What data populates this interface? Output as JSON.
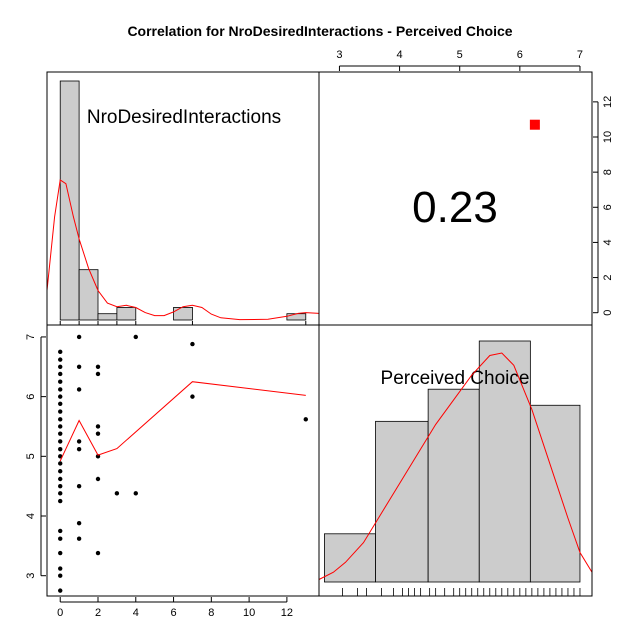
{
  "title": "Correlation  for NroDesiredInteractions - Perceived Choice",
  "chart_data": {
    "type": "scatter",
    "variables": [
      "NroDesiredInteractions",
      "Perceived Choice"
    ],
    "correlation_label": "0.23",
    "x_axis": {
      "variable": "NroDesiredInteractions",
      "range": [
        -0.7,
        13.7
      ],
      "ticks": [
        0,
        2,
        4,
        6,
        8,
        10,
        12
      ],
      "tick_labels": [
        "0",
        "2",
        "4",
        "6",
        "8",
        "10",
        "12"
      ]
    },
    "y_axis": {
      "variable": "Perceived Choice",
      "range": [
        2.66,
        7.2
      ],
      "ticks": [
        3,
        4,
        5,
        6,
        7
      ],
      "tick_labels": [
        "3",
        "4",
        "5",
        "6",
        "7"
      ]
    },
    "top_axis": {
      "variable": "Perceived Choice",
      "range": [
        2.66,
        7.2
      ],
      "ticks": [
        3,
        4,
        5,
        6,
        7
      ],
      "tick_labels": [
        "3",
        "4",
        "5",
        "6",
        "7"
      ]
    },
    "right_axis": {
      "range": [
        -0.7,
        13.7
      ],
      "ticks": [
        0,
        2,
        4,
        6,
        8,
        10,
        12
      ],
      "tick_labels": [
        "0",
        "2",
        "4",
        "6",
        "8",
        "10",
        "12"
      ]
    },
    "histogram_x": {
      "variable": "NroDesiredInteractions",
      "bin_edges": [
        0,
        1,
        2,
        3,
        4,
        5,
        6,
        7,
        8,
        9,
        10,
        11,
        12,
        13
      ],
      "counts": [
        38,
        8,
        1,
        2,
        0,
        0,
        2,
        0,
        0,
        0,
        0,
        0,
        1
      ],
      "density_curve": [
        [
          -0.7,
          0.04
        ],
        [
          -0.3,
          0.14
        ],
        [
          0.0,
          0.19
        ],
        [
          0.3,
          0.185
        ],
        [
          0.7,
          0.14
        ],
        [
          1.0,
          0.11
        ],
        [
          1.5,
          0.07
        ],
        [
          2.0,
          0.04
        ],
        [
          2.5,
          0.023
        ],
        [
          3.0,
          0.018
        ],
        [
          3.5,
          0.02
        ],
        [
          4.0,
          0.017
        ],
        [
          4.5,
          0.01
        ],
        [
          5.0,
          0.006
        ],
        [
          5.5,
          0.006
        ],
        [
          6.0,
          0.011
        ],
        [
          6.5,
          0.018
        ],
        [
          7.0,
          0.02
        ],
        [
          7.5,
          0.017
        ],
        [
          8.0,
          0.008
        ],
        [
          8.5,
          0.003
        ],
        [
          9.5,
          0.0005
        ],
        [
          11.0,
          0.001
        ],
        [
          12.0,
          0.005
        ],
        [
          12.6,
          0.009
        ],
        [
          13.0,
          0.01
        ],
        [
          13.7,
          0.009
        ]
      ],
      "rug": [
        0,
        1,
        2,
        3,
        4,
        7,
        13
      ]
    },
    "histogram_y": {
      "variable": "Perceived Choice",
      "bin_edges": [
        2.75,
        3.6,
        4.475,
        5.325,
        6.175,
        7.0
      ],
      "counts": [
        3,
        10,
        12,
        15,
        11
      ],
      "density_curve": [
        [
          2.66,
          0.005
        ],
        [
          2.9,
          0.02
        ],
        [
          3.1,
          0.04
        ],
        [
          3.4,
          0.08
        ],
        [
          3.7,
          0.14
        ],
        [
          4.0,
          0.2
        ],
        [
          4.3,
          0.26
        ],
        [
          4.6,
          0.32
        ],
        [
          4.9,
          0.37
        ],
        [
          5.2,
          0.42
        ],
        [
          5.5,
          0.46
        ],
        [
          5.7,
          0.465
        ],
        [
          5.9,
          0.44
        ],
        [
          6.2,
          0.35
        ],
        [
          6.5,
          0.24
        ],
        [
          6.8,
          0.13
        ],
        [
          7.0,
          0.06
        ],
        [
          7.2,
          0.02
        ]
      ],
      "rug": [
        3.05,
        3.3,
        3.45,
        3.7,
        3.9,
        4.05,
        4.15,
        4.25,
        4.35,
        4.5,
        4.6,
        4.75,
        4.9,
        5.0,
        5.1,
        5.2,
        5.3,
        5.4,
        5.5,
        5.6,
        5.7,
        5.8,
        5.9,
        6.0,
        6.1,
        6.2,
        6.3,
        6.4,
        6.5,
        6.6,
        6.7,
        6.8,
        6.9,
        7.0
      ]
    },
    "points": [
      [
        0,
        6.75
      ],
      [
        0,
        6.62
      ],
      [
        0,
        6.5
      ],
      [
        0,
        6.38
      ],
      [
        0,
        6.25
      ],
      [
        0,
        6.12
      ],
      [
        0,
        6.0
      ],
      [
        0,
        5.88
      ],
      [
        0,
        5.75
      ],
      [
        0,
        5.62
      ],
      [
        0,
        5.5
      ],
      [
        0,
        5.38
      ],
      [
        0,
        5.25
      ],
      [
        0,
        5.12
      ],
      [
        0,
        5.0
      ],
      [
        0,
        4.88
      ],
      [
        0,
        4.75
      ],
      [
        0,
        4.62
      ],
      [
        0,
        4.5
      ],
      [
        0,
        4.38
      ],
      [
        0,
        4.25
      ],
      [
        0,
        3.75
      ],
      [
        0,
        3.62
      ],
      [
        0,
        3.38
      ],
      [
        0,
        3.12
      ],
      [
        0,
        3.0
      ],
      [
        0,
        2.75
      ],
      [
        1,
        7.0
      ],
      [
        1,
        6.5
      ],
      [
        1,
        6.12
      ],
      [
        1,
        5.25
      ],
      [
        1,
        5.12
      ],
      [
        1,
        4.5
      ],
      [
        1,
        3.88
      ],
      [
        1,
        3.62
      ],
      [
        2,
        6.5
      ],
      [
        2,
        6.38
      ],
      [
        2,
        5.5
      ],
      [
        2,
        5.38
      ],
      [
        2,
        5.0
      ],
      [
        2,
        4.62
      ],
      [
        2,
        3.38
      ],
      [
        3,
        4.38
      ],
      [
        4,
        7.0
      ],
      [
        4,
        4.38
      ],
      [
        7,
        6.88
      ],
      [
        7,
        6.0
      ],
      [
        13,
        5.62
      ]
    ],
    "smoother": [
      [
        0,
        4.92
      ],
      [
        1,
        5.6
      ],
      [
        2,
        5.02
      ],
      [
        3,
        5.13
      ],
      [
        7,
        6.25
      ],
      [
        13,
        6.02
      ]
    ],
    "marker_in_correlation_panel": {
      "color": "#ff0000",
      "x": 6.25,
      "y": 10.7
    },
    "colors": {
      "bars": "#cccccc",
      "curve": "#ff0000",
      "points": "#000000",
      "marker": "#ff0000"
    }
  }
}
